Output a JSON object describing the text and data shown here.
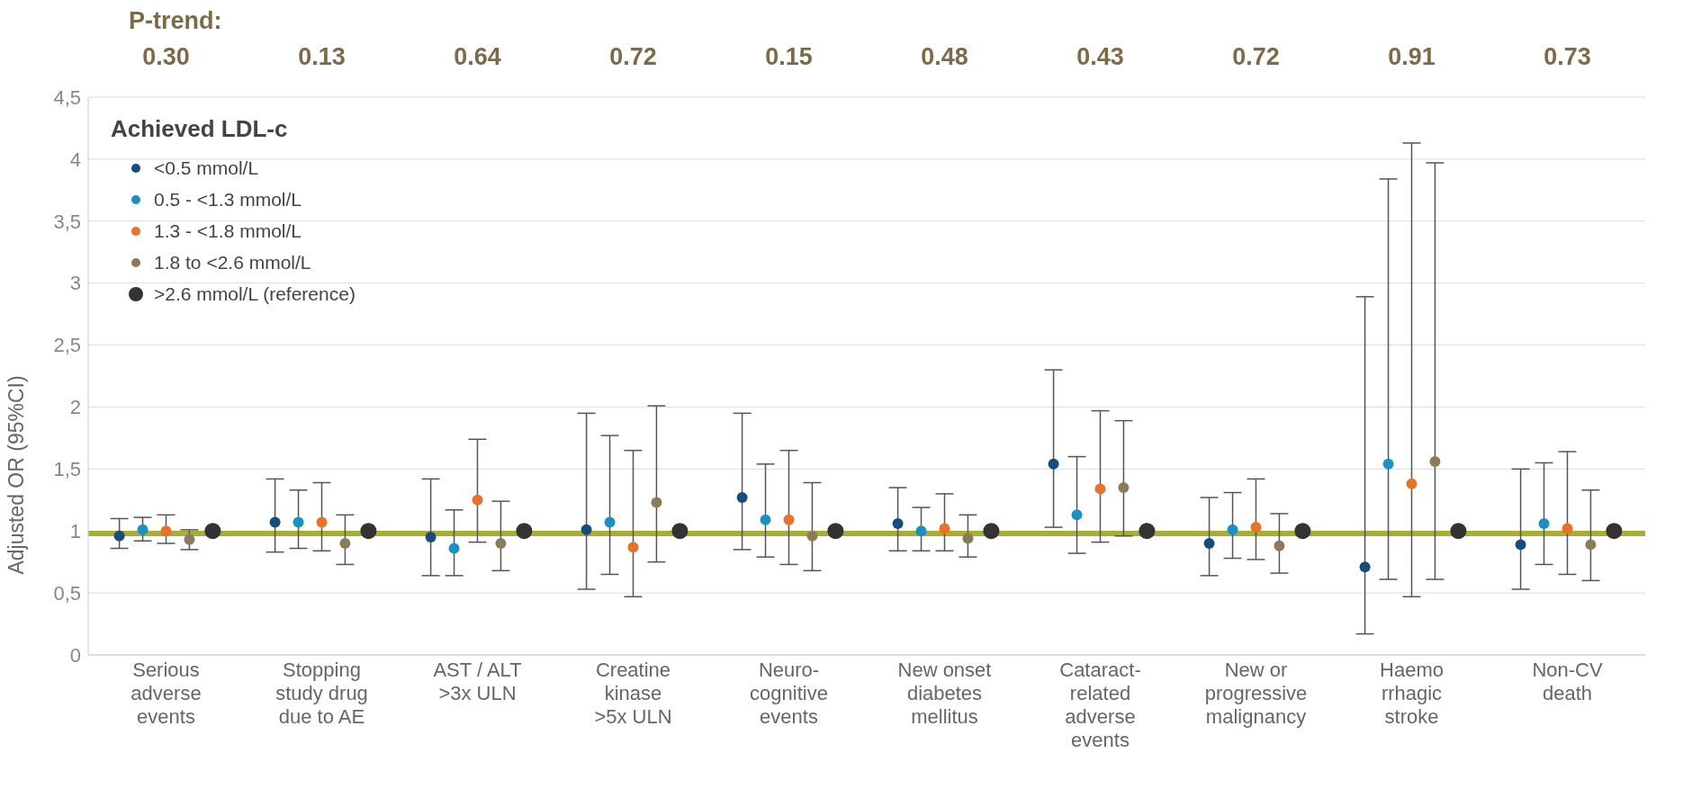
{
  "chart_data": {
    "type": "scatter",
    "ylabel": "Adjusted OR (95%CI)",
    "legend_title": "Achieved LDL-c",
    "legend": "top left",
    "grid": "y",
    "marker": "circle",
    "categories": [
      "Serious\nadverse\nevents",
      "Stopping\nstudy drug\ndue to AE",
      "AST / ALT\n>3x ULN",
      "Creatine\nkinase\n>5x ULN",
      "Neuro-\ncognitive\nevents",
      "New onset\ndiabetes\nmellitus",
      "Cataract-\nrelated\nadverse\nevents",
      "New or\nprogressive\nmalignancy",
      "Haemo\nrrhagic\nstroke",
      "Non-CV\ndeath"
    ],
    "ylim": [
      0,
      4.5
    ],
    "yticks": [
      {
        "value": 0,
        "label": "0"
      },
      {
        "value": 0.5,
        "label": "0,5"
      },
      {
        "value": 1,
        "label": "1"
      },
      {
        "value": 1.5,
        "label": "1,5"
      },
      {
        "value": 2,
        "label": "2"
      },
      {
        "value": 2.5,
        "label": "2,5"
      },
      {
        "value": 3,
        "label": "3"
      },
      {
        "value": 3.5,
        "label": "3,5"
      },
      {
        "value": 4,
        "label": "4"
      },
      {
        "value": 4.5,
        "label": "4,5"
      }
    ],
    "series": [
      {
        "name": "<0.5 mmol/L",
        "color": "#174c7c",
        "values": [
          0.96,
          1.07,
          0.95,
          1.01,
          1.27,
          1.06,
          1.54,
          0.9,
          0.71,
          0.89
        ],
        "errors": [
          [
            0.86,
            1.1
          ],
          [
            0.83,
            1.42
          ],
          [
            0.64,
            1.42
          ],
          [
            0.53,
            1.95
          ],
          [
            0.85,
            1.95
          ],
          [
            0.84,
            1.35
          ],
          [
            1.03,
            2.3
          ],
          [
            0.64,
            1.27
          ],
          [
            0.17,
            2.89
          ],
          [
            0.53,
            1.5
          ]
        ]
      },
      {
        "name": "0.5 - <1.3 mmol/L",
        "color": "#1a90c4",
        "values": [
          1.01,
          1.07,
          0.86,
          1.07,
          1.09,
          1.0,
          1.13,
          1.01,
          1.54,
          1.06
        ],
        "errors": [
          [
            0.92,
            1.11
          ],
          [
            0.86,
            1.33
          ],
          [
            0.64,
            1.17
          ],
          [
            0.65,
            1.77
          ],
          [
            0.79,
            1.54
          ],
          [
            0.84,
            1.19
          ],
          [
            0.82,
            1.6
          ],
          [
            0.78,
            1.31
          ],
          [
            0.61,
            3.84
          ],
          [
            0.73,
            1.55
          ]
        ]
      },
      {
        "name": "1.3 - <1.8 mmol/L",
        "color": "#ea7128",
        "values": [
          1.0,
          1.07,
          1.25,
          0.87,
          1.09,
          1.02,
          1.34,
          1.03,
          1.38,
          1.02
        ],
        "errors": [
          [
            0.9,
            1.13
          ],
          [
            0.84,
            1.39
          ],
          [
            0.91,
            1.74
          ],
          [
            0.47,
            1.65
          ],
          [
            0.73,
            1.65
          ],
          [
            0.84,
            1.3
          ],
          [
            0.91,
            1.97
          ],
          [
            0.77,
            1.42
          ],
          [
            0.47,
            4.13
          ],
          [
            0.65,
            1.64
          ]
        ]
      },
      {
        "name": "1.8 to <2.6 mmol/L",
        "color": "#8a7b5c",
        "values": [
          0.93,
          0.9,
          0.9,
          1.23,
          0.96,
          0.94,
          1.35,
          0.88,
          1.56,
          0.89
        ],
        "errors": [
          [
            0.85,
            1.01
          ],
          [
            0.73,
            1.13
          ],
          [
            0.68,
            1.24
          ],
          [
            0.75,
            2.01
          ],
          [
            0.68,
            1.39
          ],
          [
            0.79,
            1.13
          ],
          [
            0.96,
            1.89
          ],
          [
            0.66,
            1.14
          ],
          [
            0.61,
            3.97
          ],
          [
            0.6,
            1.33
          ]
        ]
      },
      {
        "name": ">2.6 mmol/L (reference)",
        "color": "#333333",
        "values": [
          1,
          1,
          1,
          1,
          1,
          1,
          1,
          1,
          1,
          1
        ]
      }
    ],
    "ref_lines": [
      {
        "axis": "y",
        "value": 0.98,
        "color": "#a8ae32"
      }
    ],
    "annotations": [
      "P-trend:",
      "0.30",
      "0.13",
      "0.64",
      "0.72",
      "0.15",
      "0.48",
      "0.43",
      "0.72",
      "0.91",
      "0.73"
    ]
  }
}
